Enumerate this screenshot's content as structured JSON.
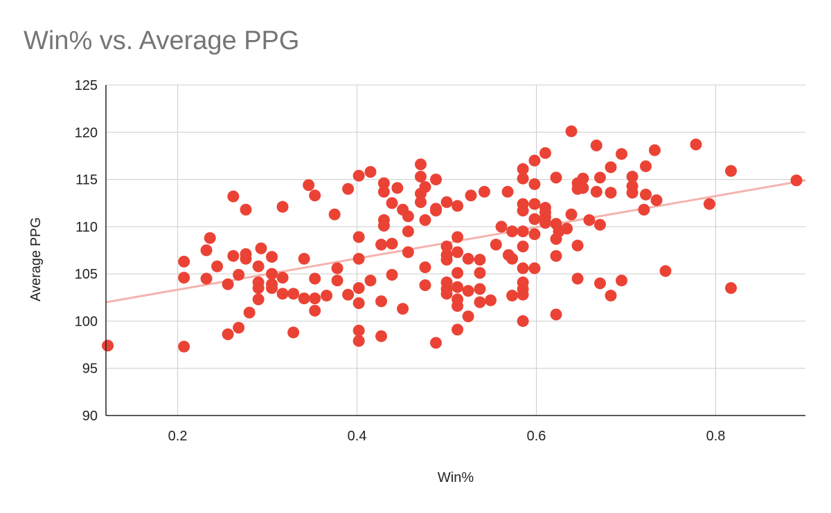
{
  "chart_data": {
    "type": "scatter",
    "title": "Win% vs. Average PPG",
    "xlabel": "Win%",
    "ylabel": "Average PPG",
    "xlim": [
      0.12,
      0.9
    ],
    "ylim": [
      90,
      125
    ],
    "x_ticks": [
      0.2,
      0.4,
      0.6,
      0.8
    ],
    "y_ticks": [
      90,
      95,
      100,
      105,
      110,
      115,
      120,
      125
    ],
    "x_tick_labels": [
      "0.2",
      "0.4",
      "0.6",
      "0.8"
    ],
    "y_tick_labels": [
      "90",
      "95",
      "100",
      "105",
      "110",
      "115",
      "120",
      "125"
    ],
    "grid": true,
    "legend": "none",
    "colors": {
      "points": "#ea4335",
      "trendline": "#f4b3ae",
      "grid": "#cccccc",
      "axis": "#222222"
    },
    "trendline": {
      "from": [
        0.12,
        102.0
      ],
      "to": [
        0.9,
        114.9
      ]
    },
    "series": [
      {
        "points": [
          [
            0.122,
            97.4
          ],
          [
            0.207,
            97.3
          ],
          [
            0.207,
            104.6
          ],
          [
            0.207,
            106.3
          ],
          [
            0.232,
            104.5
          ],
          [
            0.232,
            107.5
          ],
          [
            0.236,
            108.8
          ],
          [
            0.244,
            105.8
          ],
          [
            0.256,
            98.6
          ],
          [
            0.256,
            103.9
          ],
          [
            0.262,
            106.9
          ],
          [
            0.262,
            113.2
          ],
          [
            0.268,
            99.3
          ],
          [
            0.268,
            104.9
          ],
          [
            0.276,
            106.6
          ],
          [
            0.276,
            107.1
          ],
          [
            0.276,
            111.8
          ],
          [
            0.28,
            100.9
          ],
          [
            0.29,
            102.3
          ],
          [
            0.29,
            103.5
          ],
          [
            0.29,
            104.1
          ],
          [
            0.29,
            105.8
          ],
          [
            0.293,
            107.7
          ],
          [
            0.305,
            103.5
          ],
          [
            0.305,
            103.9
          ],
          [
            0.305,
            105.0
          ],
          [
            0.305,
            106.8
          ],
          [
            0.317,
            102.9
          ],
          [
            0.317,
            104.6
          ],
          [
            0.317,
            112.1
          ],
          [
            0.329,
            98.8
          ],
          [
            0.329,
            102.9
          ],
          [
            0.341,
            102.4
          ],
          [
            0.341,
            106.6
          ],
          [
            0.346,
            114.4
          ],
          [
            0.353,
            101.1
          ],
          [
            0.353,
            102.4
          ],
          [
            0.353,
            104.5
          ],
          [
            0.353,
            113.3
          ],
          [
            0.366,
            102.7
          ],
          [
            0.375,
            111.3
          ],
          [
            0.378,
            104.3
          ],
          [
            0.378,
            105.6
          ],
          [
            0.39,
            102.8
          ],
          [
            0.39,
            114.0
          ],
          [
            0.402,
            97.9
          ],
          [
            0.402,
            99.0
          ],
          [
            0.402,
            101.9
          ],
          [
            0.402,
            103.5
          ],
          [
            0.402,
            106.6
          ],
          [
            0.402,
            108.9
          ],
          [
            0.402,
            115.4
          ],
          [
            0.415,
            104.3
          ],
          [
            0.415,
            115.8
          ],
          [
            0.427,
            98.4
          ],
          [
            0.427,
            102.1
          ],
          [
            0.427,
            108.1
          ],
          [
            0.43,
            110.1
          ],
          [
            0.43,
            110.7
          ],
          [
            0.43,
            113.7
          ],
          [
            0.43,
            114.6
          ],
          [
            0.439,
            104.9
          ],
          [
            0.439,
            108.2
          ],
          [
            0.439,
            112.5
          ],
          [
            0.445,
            114.1
          ],
          [
            0.451,
            101.3
          ],
          [
            0.451,
            111.8
          ],
          [
            0.457,
            107.3
          ],
          [
            0.457,
            109.5
          ],
          [
            0.457,
            111.1
          ],
          [
            0.471,
            112.6
          ],
          [
            0.471,
            113.5
          ],
          [
            0.471,
            115.3
          ],
          [
            0.471,
            116.6
          ],
          [
            0.476,
            103.8
          ],
          [
            0.476,
            105.7
          ],
          [
            0.476,
            110.7
          ],
          [
            0.476,
            114.2
          ],
          [
            0.488,
            97.7
          ],
          [
            0.488,
            111.7
          ],
          [
            0.488,
            111.9
          ],
          [
            0.488,
            115.0
          ],
          [
            0.5,
            102.9
          ],
          [
            0.5,
            103.4
          ],
          [
            0.5,
            104.1
          ],
          [
            0.5,
            106.5
          ],
          [
            0.5,
            107.0
          ],
          [
            0.5,
            107.9
          ],
          [
            0.5,
            112.6
          ],
          [
            0.512,
            99.1
          ],
          [
            0.512,
            101.6
          ],
          [
            0.512,
            102.3
          ],
          [
            0.512,
            103.6
          ],
          [
            0.512,
            105.1
          ],
          [
            0.512,
            107.3
          ],
          [
            0.512,
            108.9
          ],
          [
            0.512,
            112.2
          ],
          [
            0.524,
            100.5
          ],
          [
            0.524,
            103.2
          ],
          [
            0.524,
            106.6
          ],
          [
            0.527,
            113.3
          ],
          [
            0.537,
            102.0
          ],
          [
            0.537,
            103.4
          ],
          [
            0.537,
            105.1
          ],
          [
            0.537,
            106.5
          ],
          [
            0.542,
            113.7
          ],
          [
            0.549,
            102.2
          ],
          [
            0.555,
            108.1
          ],
          [
            0.561,
            110.0
          ],
          [
            0.568,
            113.7
          ],
          [
            0.569,
            107.0
          ],
          [
            0.573,
            102.7
          ],
          [
            0.573,
            106.6
          ],
          [
            0.573,
            109.5
          ],
          [
            0.585,
            100.0
          ],
          [
            0.585,
            102.8
          ],
          [
            0.585,
            103.4
          ],
          [
            0.585,
            104.1
          ],
          [
            0.585,
            105.6
          ],
          [
            0.585,
            107.9
          ],
          [
            0.585,
            109.5
          ],
          [
            0.585,
            111.7
          ],
          [
            0.585,
            112.4
          ],
          [
            0.585,
            115.1
          ],
          [
            0.585,
            116.1
          ],
          [
            0.598,
            105.6
          ],
          [
            0.598,
            109.2
          ],
          [
            0.598,
            110.8
          ],
          [
            0.598,
            112.4
          ],
          [
            0.598,
            114.5
          ],
          [
            0.598,
            117.0
          ],
          [
            0.61,
            110.4
          ],
          [
            0.61,
            111.0
          ],
          [
            0.61,
            111.5
          ],
          [
            0.61,
            112.0
          ],
          [
            0.61,
            117.8
          ],
          [
            0.622,
            100.7
          ],
          [
            0.622,
            106.9
          ],
          [
            0.622,
            108.7
          ],
          [
            0.622,
            110.3
          ],
          [
            0.622,
            115.2
          ],
          [
            0.625,
            109.5
          ],
          [
            0.634,
            109.8
          ],
          [
            0.639,
            111.3
          ],
          [
            0.639,
            120.1
          ],
          [
            0.646,
            104.5
          ],
          [
            0.646,
            108.0
          ],
          [
            0.646,
            114.0
          ],
          [
            0.646,
            114.6
          ],
          [
            0.652,
            114.1
          ],
          [
            0.652,
            115.1
          ],
          [
            0.659,
            110.7
          ],
          [
            0.667,
            113.7
          ],
          [
            0.667,
            118.6
          ],
          [
            0.671,
            104.0
          ],
          [
            0.671,
            110.2
          ],
          [
            0.671,
            115.2
          ],
          [
            0.683,
            102.7
          ],
          [
            0.683,
            113.6
          ],
          [
            0.683,
            116.3
          ],
          [
            0.695,
            104.3
          ],
          [
            0.695,
            117.7
          ],
          [
            0.707,
            113.6
          ],
          [
            0.707,
            114.3
          ],
          [
            0.707,
            115.3
          ],
          [
            0.72,
            111.8
          ],
          [
            0.722,
            113.4
          ],
          [
            0.722,
            116.4
          ],
          [
            0.732,
            118.1
          ],
          [
            0.734,
            112.8
          ],
          [
            0.744,
            105.3
          ],
          [
            0.778,
            118.7
          ],
          [
            0.793,
            112.4
          ],
          [
            0.817,
            103.5
          ],
          [
            0.817,
            115.9
          ],
          [
            0.89,
            114.9
          ]
        ]
      }
    ]
  }
}
